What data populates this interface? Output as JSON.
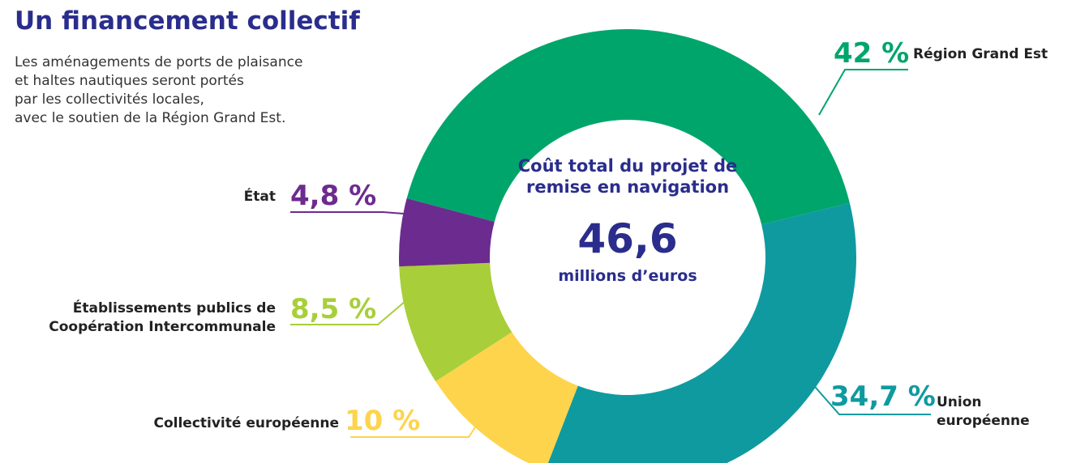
{
  "chart_data": {
    "type": "donut",
    "title": "Un financement collectif",
    "subtitle": [
      "Les aménagements de ports de plaisance",
      "et haltes nautiques seront portés",
      "par les collectivités locales,",
      "avec le soutien de la Région Grand Est."
    ],
    "center": {
      "heading": "Coût total du projet de remise en navigation",
      "value": "46,6",
      "unit": "millions d’euros"
    },
    "categories": [
      "Région Grand Est",
      "Union européenne",
      "Collectivité européenne",
      "Établissements publics de Coopération Intercommunale",
      "État"
    ],
    "values": [
      42,
      34.7,
      10,
      8.5,
      4.8
    ],
    "value_labels": [
      "42 %",
      "34,7 %",
      "10 %",
      "8,5 %",
      "4,8 %"
    ],
    "colors": [
      "#00a56c",
      "#0f9aa0",
      "#fdd44c",
      "#a8cf3a",
      "#6c2b8e"
    ]
  }
}
